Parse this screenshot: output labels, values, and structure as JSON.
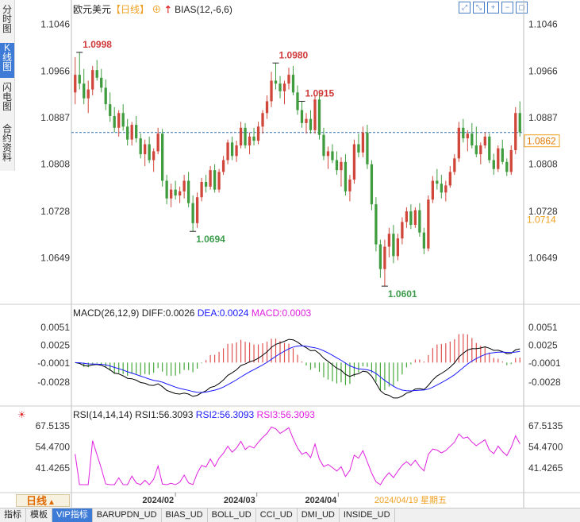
{
  "side_tabs": [
    "分时图",
    "K线图",
    "闪电图",
    "合约资料"
  ],
  "header": {
    "symbol": "欧元美元",
    "period": "【日线】",
    "bias_label": "BIAS(12,-6,6)"
  },
  "toolbar_icons": [
    "expand-icon",
    "shrink-icon",
    "add-icon",
    "remove-icon",
    "fullscreen-icon"
  ],
  "chart_data": [
    {
      "type": "candlestick",
      "title": "欧元美元【日线】",
      "y_ticks": [
        "1.1046",
        "1.0966",
        "1.0887",
        "1.0808",
        "1.0728",
        "1.0649"
      ],
      "ylim": [
        1.0585,
        1.106
      ],
      "reference_line": 1.0862,
      "current_price_label": "1.0862",
      "right_label": "1.0714",
      "annotations": [
        {
          "label": "1.0998",
          "kind": "high"
        },
        {
          "label": "1.0694",
          "kind": "low"
        },
        {
          "label": "1.0980",
          "kind": "high"
        },
        {
          "label": "1.0601",
          "kind": "low"
        },
        {
          "label": "1.0915",
          "kind": "high"
        }
      ],
      "ohlc": [
        [
          1.093,
          1.099,
          1.091,
          1.096
        ],
        [
          1.096,
          1.0998,
          1.0935,
          1.0945
        ],
        [
          1.0945,
          1.097,
          1.091,
          1.092
        ],
        [
          1.092,
          1.095,
          1.0895,
          1.0935
        ],
        [
          1.0935,
          1.0975,
          1.0925,
          1.0968
        ],
        [
          1.0968,
          1.0985,
          1.095,
          1.0955
        ],
        [
          1.0955,
          1.097,
          1.093,
          1.0938
        ],
        [
          1.0938,
          1.0952,
          1.09,
          1.091
        ],
        [
          1.091,
          1.093,
          1.088,
          1.089
        ],
        [
          1.089,
          1.0905,
          1.0862,
          1.087
        ],
        [
          1.087,
          1.09,
          1.0855,
          1.0895
        ],
        [
          1.0895,
          1.091,
          1.0865,
          1.0872
        ],
        [
          1.0872,
          1.0885,
          1.084,
          1.085
        ],
        [
          1.085,
          1.088,
          1.084,
          1.0875
        ],
        [
          1.0875,
          1.089,
          1.0845,
          1.0852
        ],
        [
          1.0852,
          1.086,
          1.0818,
          1.0825
        ],
        [
          1.0825,
          1.085,
          1.0805,
          1.0842
        ],
        [
          1.0842,
          1.0855,
          1.081,
          1.0815
        ],
        [
          1.0815,
          1.0835,
          1.0795,
          1.083
        ],
        [
          1.083,
          1.087,
          1.0825,
          1.086
        ],
        [
          1.086,
          1.0868,
          1.077,
          1.078
        ],
        [
          1.078,
          1.079,
          1.074,
          1.075
        ],
        [
          1.075,
          1.0775,
          1.0735,
          1.0765
        ],
        [
          1.0765,
          1.078,
          1.0748,
          1.0755
        ],
        [
          1.0755,
          1.077,
          1.0742,
          1.0762
        ],
        [
          1.0762,
          1.079,
          1.075,
          1.078
        ],
        [
          1.078,
          1.0795,
          1.0735,
          1.0742
        ],
        [
          1.0742,
          1.0755,
          1.0694,
          1.0708
        ],
        [
          1.0708,
          1.076,
          1.07,
          1.0752
        ],
        [
          1.0752,
          1.0785,
          1.0745,
          1.0778
        ],
        [
          1.0778,
          1.079,
          1.076,
          1.077
        ],
        [
          1.077,
          1.0805,
          1.0765,
          1.0798
        ],
        [
          1.0798,
          1.0808,
          1.076,
          1.0765
        ],
        [
          1.0765,
          1.08,
          1.076,
          1.0795
        ],
        [
          1.0795,
          1.0822,
          1.079,
          1.0815
        ],
        [
          1.0815,
          1.085,
          1.0808,
          1.0845
        ],
        [
          1.0845,
          1.0855,
          1.0815,
          1.0822
        ],
        [
          1.0822,
          1.0848,
          1.0812,
          1.084
        ],
        [
          1.084,
          1.088,
          1.0835,
          1.087
        ],
        [
          1.087,
          1.0878,
          1.0835,
          1.084
        ],
        [
          1.084,
          1.0862,
          1.0825,
          1.0855
        ],
        [
          1.0855,
          1.087,
          1.084,
          1.0848
        ],
        [
          1.0848,
          1.088,
          1.0842,
          1.0872
        ],
        [
          1.0872,
          1.09,
          1.086,
          1.0895
        ],
        [
          1.0895,
          1.0925,
          1.0885,
          1.0915
        ],
        [
          1.0915,
          1.0965,
          1.0905,
          1.095
        ],
        [
          1.095,
          1.098,
          1.0935,
          1.0945
        ],
        [
          1.0945,
          1.0958,
          1.092,
          1.0932
        ],
        [
          1.0932,
          1.095,
          1.091,
          1.0945
        ],
        [
          1.0945,
          1.0972,
          1.0935,
          1.096
        ],
        [
          1.096,
          1.0975,
          1.0925,
          1.093
        ],
        [
          1.093,
          1.0942,
          1.0892,
          1.09
        ],
        [
          1.09,
          1.0915,
          1.087,
          1.0878
        ],
        [
          1.0878,
          1.0895,
          1.086,
          1.0885
        ],
        [
          1.0885,
          1.09,
          1.086,
          1.0866
        ],
        [
          1.0866,
          1.0925,
          1.086,
          1.0918
        ],
        [
          1.0918,
          1.093,
          1.085,
          1.0858
        ],
        [
          1.0858,
          1.087,
          1.0815,
          1.0822
        ],
        [
          1.0822,
          1.0838,
          1.08,
          1.083
        ],
        [
          1.083,
          1.0842,
          1.081,
          1.0815
        ],
        [
          1.0815,
          1.083,
          1.079,
          1.0798
        ],
        [
          1.0798,
          1.082,
          1.077,
          1.0812
        ],
        [
          1.0812,
          1.0825,
          1.0755,
          1.0762
        ],
        [
          1.0762,
          1.079,
          1.0745,
          1.0782
        ],
        [
          1.0782,
          1.085,
          1.0775,
          1.0842
        ],
        [
          1.0842,
          1.086,
          1.082,
          1.0828
        ],
        [
          1.0828,
          1.0872,
          1.082,
          1.0862
        ],
        [
          1.0862,
          1.0875,
          1.08,
          1.0808
        ],
        [
          1.0808,
          1.0815,
          1.073,
          1.074
        ],
        [
          1.074,
          1.0752,
          1.066,
          1.0672
        ],
        [
          1.0672,
          1.068,
          1.0615,
          1.063
        ],
        [
          1.063,
          1.068,
          1.0601,
          1.0668
        ],
        [
          1.0668,
          1.07,
          1.065,
          1.069
        ],
        [
          1.069,
          1.0705,
          1.064,
          1.0652
        ],
        [
          1.0652,
          1.069,
          1.0645,
          1.0682
        ],
        [
          1.0682,
          1.0718,
          1.0672,
          1.071
        ],
        [
          1.071,
          1.0735,
          1.07,
          1.0728
        ],
        [
          1.0728,
          1.074,
          1.0698,
          1.0705
        ],
        [
          1.0705,
          1.0735,
          1.07,
          1.073
        ],
        [
          1.073,
          1.0742,
          1.0685,
          1.0692
        ],
        [
          1.0692,
          1.07,
          1.0655,
          1.0665
        ],
        [
          1.0665,
          1.0755,
          1.066,
          1.0748
        ],
        [
          1.0748,
          1.0788,
          1.0742,
          1.078
        ],
        [
          1.078,
          1.08,
          1.0765,
          1.0775
        ],
        [
          1.0775,
          1.079,
          1.075,
          1.076
        ],
        [
          1.076,
          1.078,
          1.0745,
          1.0772
        ],
        [
          1.0772,
          1.0805,
          1.0768,
          1.0795
        ],
        [
          1.0795,
          1.0825,
          1.079,
          1.0818
        ],
        [
          1.0818,
          1.088,
          1.0812,
          1.087
        ],
        [
          1.087,
          1.0885,
          1.0845,
          1.0852
        ],
        [
          1.0852,
          1.0866,
          1.083,
          1.086
        ],
        [
          1.086,
          1.0878,
          1.0835,
          1.084
        ],
        [
          1.084,
          1.0872,
          1.082,
          1.0825
        ],
        [
          1.0825,
          1.0845,
          1.0808,
          1.084
        ],
        [
          1.084,
          1.0862,
          1.0835,
          1.0855
        ],
        [
          1.0855,
          1.086,
          1.081,
          1.0815
        ],
        [
          1.0815,
          1.0826,
          1.079,
          1.08
        ],
        [
          1.08,
          1.084,
          1.0795,
          1.0835
        ],
        [
          1.0835,
          1.085,
          1.0808,
          1.0812
        ],
        [
          1.0812,
          1.0818,
          1.0788,
          1.0795
        ],
        [
          1.0795,
          1.084,
          1.079,
          1.0832
        ],
        [
          1.0832,
          1.0905,
          1.0825,
          1.0895
        ],
        [
          1.0895,
          1.0915,
          1.0855,
          1.0862
        ]
      ]
    },
    {
      "type": "bar+line",
      "name": "MACD",
      "label": "MACD(26,12,9)",
      "diff_label": "DIFF:0.0026",
      "dea_label": "DEA:0.0024",
      "macd_label": "MACD:0.0003",
      "y_ticks": [
        "0.0051",
        "0.0025",
        "-0.0001",
        "-0.0028"
      ],
      "ylim": [
        -0.005,
        0.006
      ],
      "colors": {
        "diff": "#000000",
        "dea": "#1a1aff",
        "hist_pos": "#e05050",
        "hist_neg": "#44a838"
      }
    },
    {
      "type": "line",
      "name": "RSI",
      "label": "RSI(14,14,14)",
      "rsi1_label": "RSI1:56.3093",
      "rsi2_label": "RSI2:56.3093",
      "rsi3_label": "RSI3:56.3093",
      "y_ticks": [
        "67.5135",
        "54.4700",
        "41.4265"
      ],
      "ylim": [
        30.0,
        72.0
      ],
      "color": "#e020e0"
    }
  ],
  "x_axis": {
    "ticks": [
      "2024/02",
      "2024/03",
      "2024/04"
    ],
    "cursor_date": "2024/04/19 星期五"
  },
  "footer": {
    "period_button": "日线"
  },
  "bottom_tabs": [
    "指标",
    "模板",
    "VIP指标",
    "BARUPDN_UD",
    "BIAS_UD",
    "BOLL_UD",
    "CCI_UD",
    "DMI_UD",
    "INSIDE_UD"
  ]
}
